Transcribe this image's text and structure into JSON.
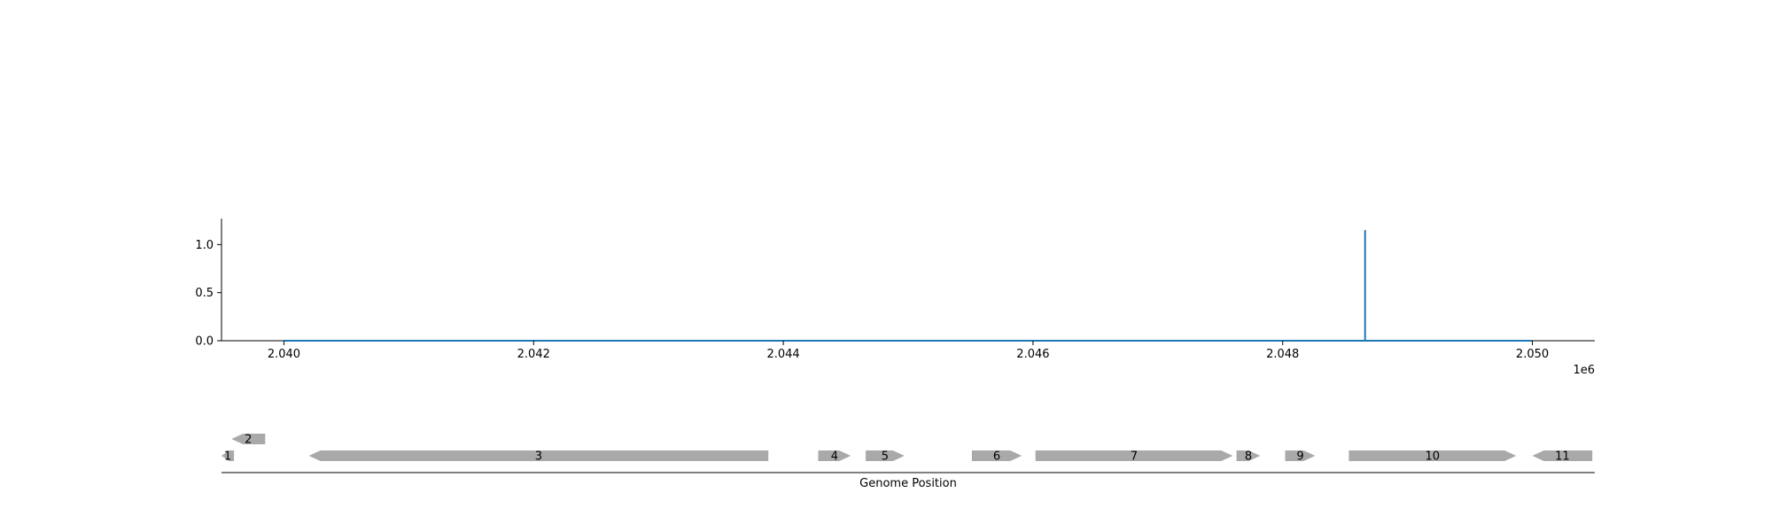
{
  "chart_data": [
    {
      "type": "line",
      "title": "",
      "xlabel": "",
      "ylabel": "",
      "x_offset_label": "1e6",
      "xlim": [
        2039500,
        2050500
      ],
      "ylim": [
        0,
        1.27
      ],
      "x_ticks": [
        2040000,
        2042000,
        2044000,
        2046000,
        2048000,
        2050000
      ],
      "x_tick_labels": [
        "2.040",
        "2.042",
        "2.044",
        "2.046",
        "2.048",
        "2.050"
      ],
      "y_ticks": [
        0,
        0.5,
        1
      ],
      "y_tick_labels": [
        "0.0",
        "0.5",
        "1.0"
      ],
      "series": [
        {
          "color": "#1f77b4",
          "x": [
            2040000,
            2048660,
            2048660,
            2048660,
            2048660,
            2050000
          ],
          "y": [
            0,
            0,
            1.15,
            1.15,
            0,
            0
          ]
        }
      ],
      "grid": false
    },
    {
      "type": "gene-track",
      "xlabel": "Genome Position",
      "xlim": [
        2039500,
        2050500
      ],
      "feature_color": "#a9a9a9",
      "features": [
        {
          "label": "1",
          "start": 2039500,
          "end": 2039600,
          "strand": -1,
          "row": 0
        },
        {
          "label": "2",
          "start": 2039580,
          "end": 2039850,
          "strand": -1,
          "row": 1
        },
        {
          "label": "3",
          "start": 2040200,
          "end": 2043880,
          "strand": -1,
          "row": 0
        },
        {
          "label": "4",
          "start": 2044280,
          "end": 2044540,
          "strand": 1,
          "row": 0
        },
        {
          "label": "5",
          "start": 2044660,
          "end": 2044970,
          "strand": 1,
          "row": 0
        },
        {
          "label": "6",
          "start": 2045510,
          "end": 2045910,
          "strand": 1,
          "row": 0
        },
        {
          "label": "7",
          "start": 2046020,
          "end": 2047600,
          "strand": 1,
          "row": 0
        },
        {
          "label": "8",
          "start": 2047630,
          "end": 2047820,
          "strand": 1,
          "row": 0
        },
        {
          "label": "9",
          "start": 2048020,
          "end": 2048260,
          "strand": 1,
          "row": 0
        },
        {
          "label": "10",
          "start": 2048530,
          "end": 2049870,
          "strand": 1,
          "row": 0
        },
        {
          "label": "11",
          "start": 2050000,
          "end": 2050480,
          "strand": -1,
          "row": 0
        }
      ]
    }
  ]
}
